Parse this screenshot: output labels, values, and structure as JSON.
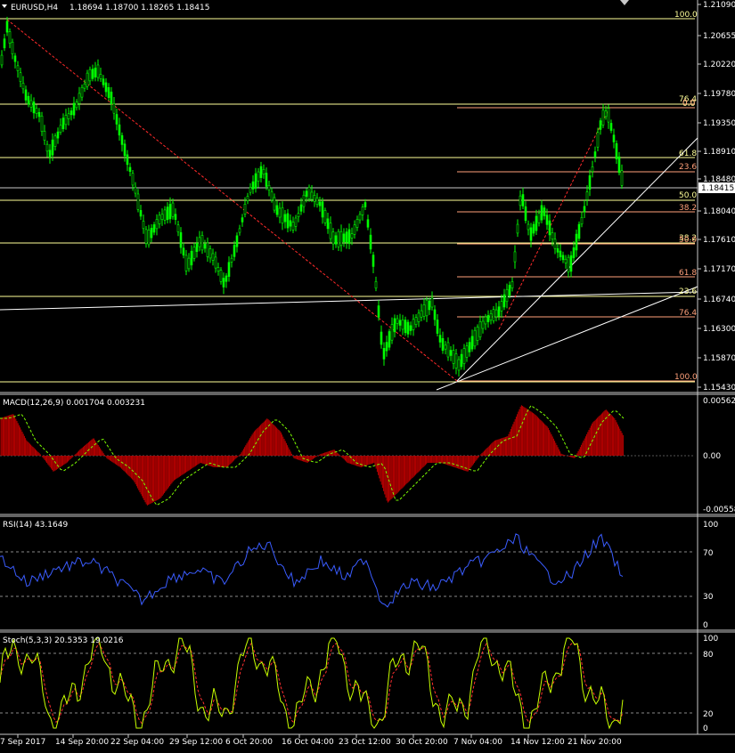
{
  "header": {
    "symbol": "EURUSD,H4",
    "ohlc": "1.18694 1.18700 1.18265 1.18415",
    "current_price": "1.18415"
  },
  "colors": {
    "background": "#000000",
    "axis": "#c8c8c8",
    "candles": "#00ff00",
    "fib_main": "#ffff99",
    "fib_second": "#ffa07a",
    "trendline": "#ffffff",
    "diag_red": "#ff2a2a",
    "macd_hist": "#c00000",
    "macd_signal": "#7cfc00",
    "rsi": "#3a5cff",
    "stoch_main": "#c8ff00",
    "stoch_signal": "#ff3030"
  },
  "price_panel": {
    "axis_labels": [
      "1.21090",
      "1.20655",
      "1.20220",
      "1.19780",
      "1.19350",
      "1.18910",
      "1.18480",
      "1.18040",
      "1.17610",
      "1.17170",
      "1.16740",
      "1.16300",
      "1.15870",
      "1.15430"
    ],
    "fib_main_levels": [
      "100.0",
      "76.4",
      "61.8",
      "50.0",
      "38.2",
      "23.6",
      "0.0"
    ],
    "fib_second_levels": [
      "0.0",
      "23.6",
      "38.2",
      "50.0",
      "61.8",
      "76.4",
      "100.0"
    ]
  },
  "macd_panel": {
    "label": "MACD(12,26,9) 0.001704 0.003231",
    "axis_labels": [
      "0.00562",
      "0.00",
      "-0.00558"
    ]
  },
  "rsi_panel": {
    "label": "RSI(14) 43.1649",
    "axis_labels": [
      "100",
      "70",
      "30",
      "0"
    ]
  },
  "stoch_panel": {
    "label": "Stoch(5,3,3) 20.5353 19.0216",
    "axis_labels": [
      "100",
      "80",
      "20",
      "0"
    ]
  },
  "time_axis": [
    "7 Sep 2017",
    "14 Sep 20:00",
    "22 Sep 04:00",
    "29 Sep 12:00",
    "6 Oct 20:00",
    "16 Oct 04:00",
    "23 Oct 12:00",
    "30 Oct 20:00",
    "7 Nov 04:00",
    "14 Nov 12:00",
    "21 Nov 20:00"
  ]
}
